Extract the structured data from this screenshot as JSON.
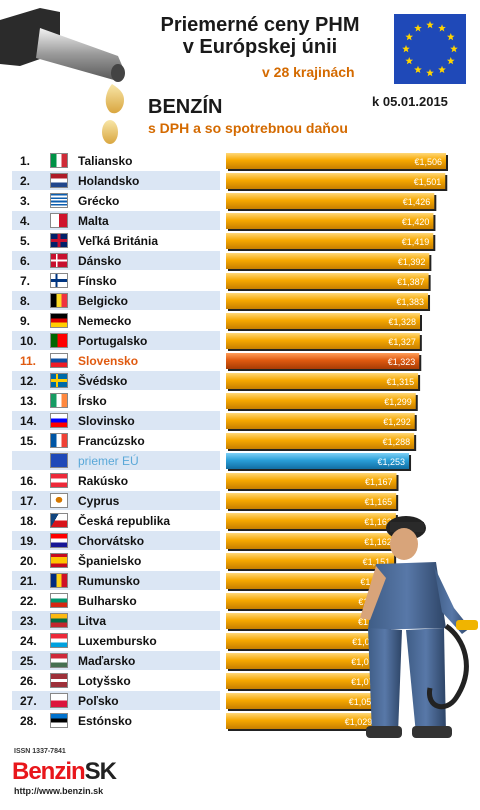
{
  "header": {
    "title_line1": "Priemerné ceny PHM",
    "title_line2": "v Európskej únii",
    "countries_note": "v 28 krajinách",
    "fuel": "BENZÍN",
    "subtitle": "s DPH a so spotrebnou daňou",
    "date": "k 05.01.2015"
  },
  "colors": {
    "bar": "#f7a800",
    "highlight": "#e05a10",
    "eu": "#2a9fd8",
    "row_alt": "#dbe6f4"
  },
  "rows": [
    {
      "rank": "1.",
      "name": "Taliansko",
      "value_label": "€1,506",
      "flag": "italy-flag"
    },
    {
      "rank": "2.",
      "name": "Holandsko",
      "value_label": "€1,501",
      "flag": "netherlands-flag"
    },
    {
      "rank": "3.",
      "name": "Grécko",
      "value_label": "€1,426",
      "flag": "greece-flag"
    },
    {
      "rank": "4.",
      "name": "Malta",
      "value_label": "€1,420",
      "flag": "malta-flag"
    },
    {
      "rank": "5.",
      "name": "Veľká Británia",
      "value_label": "€1,419",
      "flag": "uk-flag"
    },
    {
      "rank": "6.",
      "name": "Dánsko",
      "value_label": "€1,392",
      "flag": "denmark-flag"
    },
    {
      "rank": "7.",
      "name": "Fínsko",
      "value_label": "€1,387",
      "flag": "finland-flag"
    },
    {
      "rank": "8.",
      "name": "Belgicko",
      "value_label": "€1,383",
      "flag": "belgium-flag"
    },
    {
      "rank": "9.",
      "name": "Nemecko",
      "value_label": "€1,328",
      "flag": "germany-flag"
    },
    {
      "rank": "10.",
      "name": "Portugalsko",
      "value_label": "€1,327",
      "flag": "portugal-flag"
    },
    {
      "rank": "11.",
      "name": "Slovensko",
      "value_label": "€1,323",
      "flag": "slovakia-flag",
      "highlight": true
    },
    {
      "rank": "12.",
      "name": "Švédsko",
      "value_label": "€1,315",
      "flag": "sweden-flag"
    },
    {
      "rank": "13.",
      "name": "Írsko",
      "value_label": "€1,299",
      "flag": "ireland-flag"
    },
    {
      "rank": "14.",
      "name": "Slovinsko",
      "value_label": "€1,292",
      "flag": "slovenia-flag"
    },
    {
      "rank": "15.",
      "name": "Francúzsko",
      "value_label": "€1,288",
      "flag": "france-flag"
    },
    {
      "rank": "",
      "name": "priemer EÚ",
      "value_label": "€1,253",
      "flag": "eu-flag",
      "eu": true
    },
    {
      "rank": "16.",
      "name": "Rakúsko",
      "value_label": "€1,167",
      "flag": "austria-flag"
    },
    {
      "rank": "17.",
      "name": "Cyprus",
      "value_label": "€1,165",
      "flag": "cyprus-flag"
    },
    {
      "rank": "18.",
      "name": "Česká republika",
      "value_label": "€1,163",
      "flag": "czech-flag"
    },
    {
      "rank": "19.",
      "name": "Chorvátsko",
      "value_label": "€1,162",
      "flag": "croatia-flag"
    },
    {
      "rank": "20.",
      "name": "Španielsko",
      "value_label": "€1,151",
      "flag": "spain-flag"
    },
    {
      "rank": "21.",
      "name": "Rumunsko",
      "value_label": "€1,136",
      "flag": "romania-flag"
    },
    {
      "rank": "22.",
      "name": "Bulharsko",
      "value_label": "€1,117",
      "flag": "bulgaria-flag"
    },
    {
      "rank": "23.",
      "name": "Litva",
      "value_label": "€1,115",
      "flag": "lithuania-flag"
    },
    {
      "rank": "24.",
      "name": "Luxembursko",
      "value_label": "€1,079",
      "flag": "luxembourg-flag"
    },
    {
      "rank": "25.",
      "name": "Maďarsko",
      "value_label": "€1,073",
      "flag": "hungary-flag"
    },
    {
      "rank": "26.",
      "name": "Lotyšsko",
      "value_label": "€1,072",
      "flag": "latvia-flag"
    },
    {
      "rank": "27.",
      "name": "Poľsko",
      "value_label": "€1,056",
      "flag": "poland-flag"
    },
    {
      "rank": "28.",
      "name": "Estónsko",
      "value_label": "€1,029",
      "flag": "estonia-flag"
    }
  ],
  "chart_data": {
    "type": "bar",
    "orientation": "horizontal",
    "categories": [
      "Taliansko",
      "Holandsko",
      "Grécko",
      "Malta",
      "Veľká Británia",
      "Dánsko",
      "Fínsko",
      "Belgicko",
      "Nemecko",
      "Portugalsko",
      "Slovensko",
      "Švédsko",
      "Írsko",
      "Slovinsko",
      "Francúzsko",
      "priemer EÚ",
      "Rakúsko",
      "Cyprus",
      "Česká republika",
      "Chorvátsko",
      "Španielsko",
      "Rumunsko",
      "Bulharsko",
      "Litva",
      "Luxembursko",
      "Maďarsko",
      "Lotyšsko",
      "Poľsko",
      "Estónsko"
    ],
    "values": [
      1.506,
      1.501,
      1.426,
      1.42,
      1.419,
      1.392,
      1.387,
      1.383,
      1.328,
      1.327,
      1.323,
      1.315,
      1.299,
      1.292,
      1.288,
      1.253,
      1.167,
      1.165,
      1.163,
      1.162,
      1.151,
      1.136,
      1.117,
      1.115,
      1.079,
      1.073,
      1.072,
      1.056,
      1.029
    ],
    "unit": "€",
    "title": "Priemerné ceny PHM v Európskej únii",
    "xlim": [
      0,
      1.506
    ]
  },
  "logo": {
    "issn": "ISSN 1337-7841",
    "brand_red": "Benzin",
    "brand_dark": "SK",
    "url": "http://www.benzin.sk"
  }
}
